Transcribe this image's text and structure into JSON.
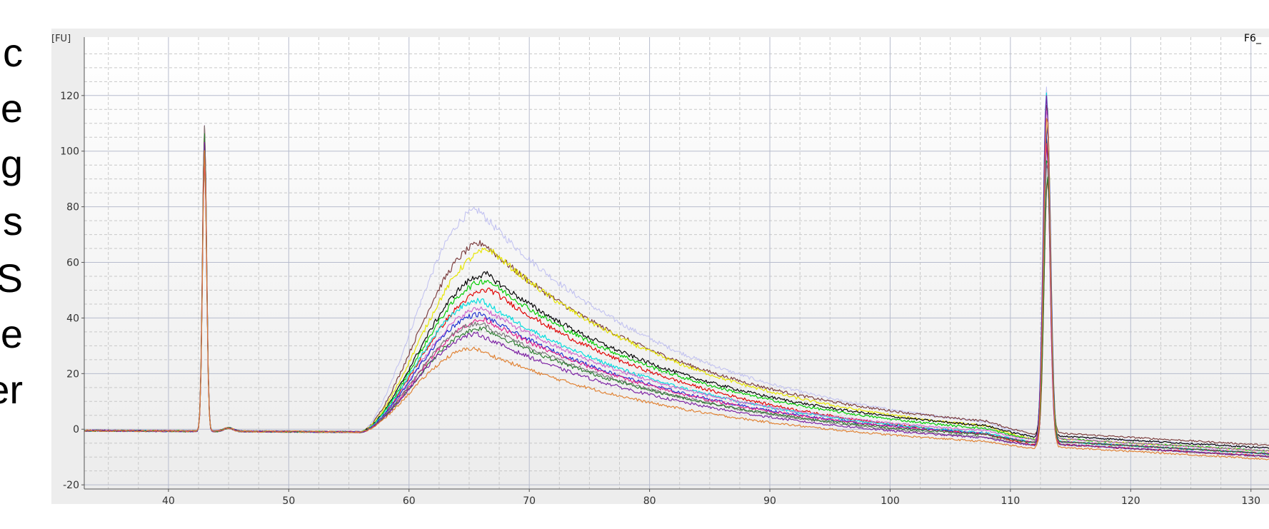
{
  "left_text": [
    "c",
    "e",
    "g",
    "s",
    "S",
    "e",
    "er"
  ],
  "chart_data": {
    "type": "line",
    "title": "",
    "sample_label": "F6_",
    "ylabel_unit": "[FU]",
    "xlabel": "",
    "xlim": [
      33,
      131.5
    ],
    "ylim": [
      -21.5,
      141
    ],
    "xticks": [
      40,
      50,
      60,
      70,
      80,
      90,
      100,
      110,
      120,
      130
    ],
    "yticks": [
      -20,
      0,
      20,
      40,
      60,
      80,
      100,
      120
    ],
    "grid": true,
    "legend": "none",
    "marker_peaks": [
      {
        "x": 43.0,
        "peak": 110
      },
      {
        "x": 113.0,
        "peak": 125
      }
    ],
    "series": [
      {
        "color": "#b9b9ef",
        "smear_peak_x": 65.8,
        "smear_peak": 80,
        "tail_end": -3
      },
      {
        "color": "#7a3b3b",
        "smear_peak_x": 66.2,
        "smear_peak": 68,
        "tail_end": -2
      },
      {
        "color": "#e6e600",
        "smear_peak_x": 66.8,
        "smear_peak": 66,
        "tail_end": -4
      },
      {
        "color": "#000000",
        "smear_peak_x": 66.5,
        "smear_peak": 57,
        "tail_end": -3
      },
      {
        "color": "#00cc00",
        "smear_peak_x": 66.6,
        "smear_peak": 55,
        "tail_end": -4
      },
      {
        "color": "#e00000",
        "smear_peak_x": 66.8,
        "smear_peak": 52,
        "tail_end": -6
      },
      {
        "color": "#00dddd",
        "smear_peak_x": 66.0,
        "smear_peak": 48,
        "tail_end": -5
      },
      {
        "color": "#cc66cc",
        "smear_peak_x": 66.2,
        "smear_peak": 45,
        "tail_end": -4
      },
      {
        "color": "#1f2fd0",
        "smear_peak_x": 66.0,
        "smear_peak": 43,
        "tail_end": -5
      },
      {
        "color": "#e0208a",
        "smear_peak_x": 66.4,
        "smear_peak": 41,
        "tail_end": -5
      },
      {
        "color": "#777777",
        "smear_peak_x": 66.0,
        "smear_peak": 40,
        "tail_end": -6
      },
      {
        "color": "#2e7d32",
        "smear_peak_x": 66.2,
        "smear_peak": 38,
        "tail_end": -5
      },
      {
        "color": "#7b1fa2",
        "smear_peak_x": 65.8,
        "smear_peak": 36,
        "tail_end": -6
      },
      {
        "color": "#e08030",
        "smear_peak_x": 65.5,
        "smear_peak": 31,
        "tail_end": -7
      }
    ]
  }
}
